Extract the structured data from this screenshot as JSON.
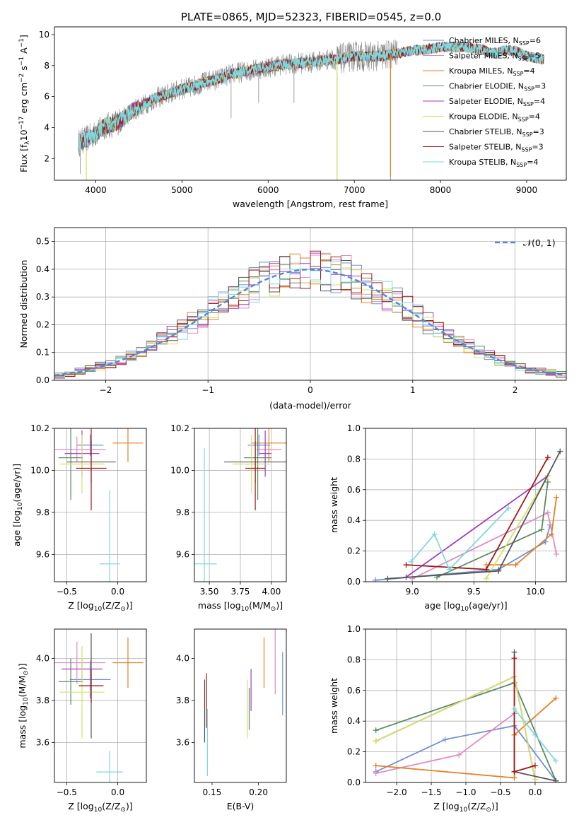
{
  "figure": {
    "title": "PLATE=0865, MJD=52323, FIBERID=0545, z=0.0"
  },
  "colors": {
    "Chabrier MILES": "#6f8fd8",
    "Salpeter MILES": "#e08cc0",
    "Kroupa MILES": "#e08224",
    "Chabrier ELODIE": "#5a8a62",
    "Salpeter ELODIE": "#a23ac0",
    "Kroupa ELODIE": "#d6e065",
    "Chabrier STELIB": "#555555",
    "Salpeter STELIB": "#a01818",
    "Kroupa STELIB": "#7fd8dc",
    "data": "#888888",
    "normal": "#5a82d8"
  },
  "chart_data": [
    {
      "id": "spectrum",
      "type": "line",
      "title": "PLATE=0865, MJD=52323, FIBERID=0545, z=0.0",
      "xlabel": "wavelength [Angstrom, rest frame]",
      "ylabel": "Flux [f",
      "ylabel_sub": "λ",
      "ylabel_rest": "10",
      "ylabel_sup1": "−17",
      "ylabel_rest2": " erg cm",
      "ylabel_sup2": "−2",
      "ylabel_rest3": " s",
      "ylabel_sup3": "−1",
      "ylabel_rest4": " A",
      "ylabel_sup4": "−1",
      "ylabel_end": "]",
      "xlim": [
        3520,
        9460
      ],
      "ylim": [
        0.6,
        10.5
      ],
      "xticks": [
        4000,
        5000,
        6000,
        7000,
        8000,
        9000
      ],
      "yticks": [
        2,
        4,
        6,
        8,
        10
      ],
      "grid": false,
      "legend_position": "right",
      "legend": [
        {
          "name": "Chabrier MILES",
          "nssp": "6"
        },
        {
          "name": "Salpeter MILES",
          "nssp": "5"
        },
        {
          "name": "Kroupa MILES",
          "nssp": "4"
        },
        {
          "name": "Chabrier ELODIE",
          "nssp": "3"
        },
        {
          "name": "Salpeter ELODIE",
          "nssp": "4"
        },
        {
          "name": "Kroupa ELODIE",
          "nssp": "4"
        },
        {
          "name": "Chabrier STELIB",
          "nssp": "3"
        },
        {
          "name": "Salpeter STELIB",
          "nssp": "3"
        },
        {
          "name": "Kroupa STELIB",
          "nssp": "4"
        }
      ],
      "legend_nssp_label": "N",
      "legend_nssp_sub": "SSP",
      "model_envelope": [
        [
          3800,
          3.0
        ],
        [
          3900,
          3.3
        ],
        [
          4000,
          3.6
        ],
        [
          4100,
          4.1
        ],
        [
          4200,
          4.2
        ],
        [
          4300,
          4.5
        ],
        [
          4400,
          5.0
        ],
        [
          4500,
          5.3
        ],
        [
          4600,
          5.6
        ],
        [
          4700,
          5.9
        ],
        [
          4800,
          6.1
        ],
        [
          4900,
          6.3
        ],
        [
          5000,
          6.5
        ],
        [
          5100,
          6.6
        ],
        [
          5200,
          6.8
        ],
        [
          5300,
          7.0
        ],
        [
          5400,
          7.1
        ],
        [
          5500,
          7.3
        ],
        [
          5600,
          7.5
        ],
        [
          5700,
          7.6
        ],
        [
          5800,
          7.7
        ],
        [
          5900,
          7.8
        ],
        [
          6000,
          7.9
        ],
        [
          6100,
          8.0
        ],
        [
          6200,
          8.1
        ],
        [
          6300,
          8.1
        ],
        [
          6400,
          8.2
        ],
        [
          6500,
          8.2
        ],
        [
          6600,
          8.3
        ],
        [
          6700,
          8.4
        ],
        [
          6800,
          8.4
        ],
        [
          6900,
          8.5
        ],
        [
          7000,
          8.6
        ],
        [
          7100,
          8.6
        ],
        [
          7200,
          8.6
        ],
        [
          7300,
          8.6
        ],
        [
          7400,
          8.7
        ],
        [
          7500,
          8.8
        ],
        [
          7600,
          8.9
        ],
        [
          7700,
          9.0
        ],
        [
          7800,
          9.0
        ],
        [
          7900,
          9.1
        ],
        [
          8000,
          9.2
        ],
        [
          8100,
          9.2
        ],
        [
          8200,
          9.2
        ],
        [
          8300,
          9.2
        ],
        [
          8400,
          9.1
        ],
        [
          8500,
          9.0
        ],
        [
          8600,
          8.8
        ],
        [
          8700,
          8.9
        ],
        [
          8800,
          9.0
        ],
        [
          8900,
          8.9
        ],
        [
          9000,
          8.6
        ],
        [
          9100,
          8.5
        ],
        [
          9200,
          8.4
        ]
      ],
      "data_range": [
        3800,
        7500
      ],
      "deep_lines": [
        {
          "x": 3820,
          "y": 1.0
        },
        {
          "x": 3890,
          "y": 1.0
        },
        {
          "x": 5570,
          "y": 4.6
        },
        {
          "x": 5890,
          "y": 5.6
        },
        {
          "x": 6300,
          "y": 5.6
        },
        {
          "x": 6800,
          "y": 0.6
        },
        {
          "x": 7420,
          "y": 0.6
        }
      ]
    },
    {
      "id": "residual-histogram",
      "type": "histogram",
      "xlabel": "(data-model)/error",
      "ylabel": "Normed distribution",
      "xlim": [
        -2.5,
        2.5
      ],
      "ylim": [
        0,
        0.55
      ],
      "xticks": [
        -2,
        -1,
        0,
        1,
        2
      ],
      "yticks": [
        0.0,
        0.1,
        0.2,
        0.3,
        0.4,
        0.5
      ],
      "grid": true,
      "bin_width": 0.1,
      "legend_position": "top-right",
      "legend": [
        {
          "name": "𝒩(0, 1)",
          "style": "dashed"
        }
      ]
    },
    {
      "id": "age-vs-metallicity",
      "type": "errorbar",
      "xlabel_pre": "Z [log",
      "xlabel_sub": "10",
      "xlabel_post": "(Z/Z",
      "xlabel_sun": "⊙",
      "xlabel_end": ")]",
      "ylabel": "age  [log10(age/yr)]",
      "xlim": [
        -0.62,
        0.28
      ],
      "ylim": [
        9.47,
        10.2
      ],
      "xticks": [
        -0.5,
        0.0
      ],
      "yticks": [
        9.6,
        9.8,
        10.0,
        10.2
      ],
      "grid": true,
      "points": [
        {
          "model": "Chabrier MILES",
          "x": -0.27,
          "y": 10.12,
          "xerr": 0.13,
          "yerr": 0.05
        },
        {
          "model": "Salpeter MILES",
          "x": -0.4,
          "y": 10.1,
          "xerr": 0.28,
          "yerr": 0.06
        },
        {
          "model": "Kroupa MILES",
          "x": 0.1,
          "y": 10.13,
          "xerr": 0.15,
          "yerr": 0.09
        },
        {
          "model": "Chabrier ELODIE",
          "x": -0.46,
          "y": 10.06,
          "xerr": 0.12,
          "yerr": 0.2
        },
        {
          "model": "Salpeter ELODIE",
          "x": -0.35,
          "y": 10.08,
          "xerr": 0.17,
          "yerr": 0.11
        },
        {
          "model": "Kroupa ELODIE",
          "x": -0.35,
          "y": 10.03,
          "xerr": 0.22,
          "yerr": 0.14
        },
        {
          "model": "Chabrier STELIB",
          "x": -0.26,
          "y": 10.04,
          "xerr": 0.24,
          "yerr": 0.1
        },
        {
          "model": "Salpeter STELIB",
          "x": -0.26,
          "y": 10.01,
          "xerr": 0.15,
          "yerr": 0.2
        },
        {
          "model": "Kroupa STELIB",
          "x": -0.08,
          "y": 9.555,
          "xerr": 0.1,
          "yerr": 0.35
        }
      ]
    },
    {
      "id": "age-vs-mass",
      "type": "errorbar",
      "xlabel_pre": "mass [log",
      "xlabel_sub": "10",
      "xlabel_post": "(M/M",
      "xlabel_sun": "⊙",
      "xlabel_end": ")]",
      "xlim": [
        3.38,
        4.12
      ],
      "ylim": [
        9.47,
        10.2
      ],
      "xticks": [
        3.5,
        3.75,
        4.0
      ],
      "xtick_labels": [
        "3.50",
        "3.75",
        "4.00"
      ],
      "yticks": [
        9.6,
        9.8,
        10.0,
        10.2
      ],
      "grid": true,
      "points": [
        {
          "model": "Chabrier MILES",
          "x": 3.9,
          "y": 10.12,
          "xerr": 0.09,
          "yerr": 0.05
        },
        {
          "model": "Salpeter MILES",
          "x": 3.98,
          "y": 10.1,
          "xerr": 0.1,
          "yerr": 0.06
        },
        {
          "model": "Kroupa MILES",
          "x": 3.98,
          "y": 10.13,
          "xerr": 0.14,
          "yerr": 0.09
        },
        {
          "model": "Chabrier ELODIE",
          "x": 3.89,
          "y": 10.06,
          "xerr": 0.11,
          "yerr": 0.2
        },
        {
          "model": "Salpeter ELODIE",
          "x": 3.95,
          "y": 10.08,
          "xerr": 0.05,
          "yerr": 0.11
        },
        {
          "model": "Kroupa ELODIE",
          "x": 3.84,
          "y": 10.03,
          "xerr": 0.15,
          "yerr": 0.14
        },
        {
          "model": "Chabrier STELIB",
          "x": 3.87,
          "y": 10.04,
          "xerr": 0.25,
          "yerr": 0.1
        },
        {
          "model": "Salpeter STELIB",
          "x": 3.87,
          "y": 10.01,
          "xerr": 0.08,
          "yerr": 0.2
        },
        {
          "model": "Kroupa STELIB",
          "x": 3.46,
          "y": 9.555,
          "xerr": 0.1,
          "yerr": 0.55
        }
      ]
    },
    {
      "id": "mass-weight-vs-age",
      "type": "line",
      "xlabel_pre": "age  [log",
      "xlabel_sub": "10",
      "xlabel_post": "(age/yr)]",
      "ylabel": "mass weight",
      "xlim": [
        8.62,
        10.25
      ],
      "ylim": [
        0,
        1
      ],
      "xticks": [
        9.0,
        9.5,
        10.0
      ],
      "yticks": [
        0.0,
        0.2,
        0.4,
        0.6,
        0.8,
        1.0
      ],
      "grid": true,
      "series": [
        {
          "model": "Chabrier MILES",
          "x": [
            8.7,
            9.7,
            10.08,
            10.12
          ],
          "y": [
            0.01,
            0.08,
            0.26,
            0.37
          ]
        },
        {
          "model": "Salpeter MILES",
          "x": [
            9.0,
            10.1,
            10.17
          ],
          "y": [
            0.02,
            0.45,
            0.18
          ]
        },
        {
          "model": "Kroupa MILES",
          "x": [
            9.6,
            9.84,
            10.13,
            10.17
          ],
          "y": [
            0.11,
            0.11,
            0.31,
            0.55
          ]
        },
        {
          "model": "Chabrier ELODIE",
          "x": [
            9.2,
            10.05,
            10.1
          ],
          "y": [
            0.03,
            0.34,
            0.65
          ]
        },
        {
          "model": "Salpeter ELODIE",
          "x": [
            8.95,
            10.1
          ],
          "y": [
            0.03,
            0.69
          ]
        },
        {
          "model": "Kroupa ELODIE",
          "x": [
            9.6,
            10.1
          ],
          "y": [
            0.02,
            0.69
          ]
        },
        {
          "model": "Chabrier STELIB",
          "x": [
            8.8,
            9.7,
            10.2
          ],
          "y": [
            0.02,
            0.07,
            0.85
          ]
        },
        {
          "model": "Salpeter STELIB",
          "x": [
            8.95,
            9.6,
            10.1
          ],
          "y": [
            0.11,
            0.08,
            0.81
          ]
        },
        {
          "model": "Kroupa STELIB",
          "x": [
            8.99,
            9.18,
            9.3,
            9.78
          ],
          "y": [
            0.13,
            0.31,
            0.08,
            0.48
          ]
        }
      ]
    },
    {
      "id": "mass-vs-metallicity",
      "type": "errorbar",
      "xlabel_pre": "Z [log",
      "xlabel_sub": "10",
      "xlabel_post": "(Z/Z",
      "xlabel_sun": "⊙",
      "xlabel_end": ")]",
      "ylabel": "mass [log10(M/M⊙)]",
      "xlim": [
        -0.62,
        0.28
      ],
      "ylim": [
        3.41,
        4.14
      ],
      "xticks": [
        -0.5,
        0.0
      ],
      "yticks": [
        3.6,
        3.8,
        4.0
      ],
      "grid": true,
      "points": [
        {
          "model": "Chabrier MILES",
          "x": -0.27,
          "y": 3.9,
          "xerr": 0.2,
          "yerr": 0.09
        },
        {
          "model": "Salpeter MILES",
          "x": -0.4,
          "y": 3.98,
          "xerr": 0.28,
          "yerr": 0.1
        },
        {
          "model": "Kroupa MILES",
          "x": 0.1,
          "y": 3.98,
          "xerr": 0.15,
          "yerr": 0.12
        },
        {
          "model": "Chabrier ELODIE",
          "x": -0.46,
          "y": 3.89,
          "xerr": 0.12,
          "yerr": 0.11
        },
        {
          "model": "Salpeter ELODIE",
          "x": -0.35,
          "y": 3.95,
          "xerr": 0.2,
          "yerr": 0.05
        },
        {
          "model": "Kroupa ELODIE",
          "x": -0.35,
          "y": 3.84,
          "xerr": 0.22,
          "yerr": 0.22
        },
        {
          "model": "Chabrier STELIB",
          "x": -0.26,
          "y": 3.87,
          "xerr": 0.12,
          "yerr": 0.25
        },
        {
          "model": "Salpeter STELIB",
          "x": -0.26,
          "y": 3.87,
          "xerr": 0.12,
          "yerr": 0.08
        },
        {
          "model": "Kroupa STELIB",
          "x": -0.08,
          "y": 3.46,
          "xerr": 0.13,
          "yerr": 0.1
        }
      ]
    },
    {
      "id": "mass-vs-extinction",
      "type": "errorbar",
      "xlabel": "E(B-V)",
      "xlim": [
        0.131,
        0.23
      ],
      "ylim": [
        3.41,
        4.14
      ],
      "xticks": [
        0.15,
        0.2
      ],
      "xtick_labels": [
        "0.15",
        "0.20"
      ],
      "yticks": [
        3.6,
        3.8,
        4.0
      ],
      "grid": false,
      "points": [
        {
          "model": "Chabrier MILES",
          "x": 0.226,
          "y": 3.88,
          "yerr": 0.15
        },
        {
          "model": "Salpeter MILES",
          "x": 0.218,
          "y": 3.99,
          "yerr": 0.16
        },
        {
          "model": "Kroupa MILES",
          "x": 0.206,
          "y": 3.98,
          "yerr": 0.12
        },
        {
          "model": "Chabrier ELODIE",
          "x": 0.19,
          "y": 3.76,
          "yerr": 0.1
        },
        {
          "model": "Salpeter ELODIE",
          "x": 0.192,
          "y": 3.85,
          "yerr": 0.1
        },
        {
          "model": "Kroupa ELODIE",
          "x": 0.188,
          "y": 3.76,
          "yerr": 0.14
        },
        {
          "model": "Chabrier STELIB",
          "x": 0.142,
          "y": 3.75,
          "yerr": 0.15
        },
        {
          "model": "Salpeter STELIB",
          "x": 0.144,
          "y": 3.8,
          "yerr": 0.13
        },
        {
          "model": "Kroupa STELIB",
          "x": 0.145,
          "y": 3.6,
          "yerr": 0.16
        }
      ]
    },
    {
      "id": "mass-weight-vs-metallicity",
      "type": "line",
      "xlabel_pre": "Z [log",
      "xlabel_sub": "10",
      "xlabel_post": "(Z/Z",
      "xlabel_sun": "⊙",
      "xlabel_end": ")]",
      "ylabel": "mass weight",
      "xlim": [
        -2.45,
        0.45
      ],
      "ylim": [
        0,
        1
      ],
      "xticks": [
        -2.0,
        -1.5,
        -1.0,
        -0.5,
        0.0
      ],
      "yticks": [
        0.0,
        0.2,
        0.4,
        0.6,
        0.8,
        1.0
      ],
      "grid": true,
      "series": [
        {
          "model": "Chabrier MILES",
          "x": [
            -2.3,
            -1.3,
            -0.3,
            0.3
          ],
          "y": [
            0.07,
            0.28,
            0.37,
            0.01
          ]
        },
        {
          "model": "Salpeter MILES",
          "x": [
            -2.3,
            -1.1,
            -0.3
          ],
          "y": [
            0.06,
            0.18,
            0.45
          ]
        },
        {
          "model": "Kroupa MILES",
          "x": [
            -2.3,
            -0.3,
            -0.3,
            0.3
          ],
          "y": [
            0.11,
            0.03,
            0.31,
            0.55
          ]
        },
        {
          "model": "Chabrier ELODIE",
          "x": [
            -2.3,
            -0.3,
            0.3
          ],
          "y": [
            0.34,
            0.65,
            0.01
          ]
        },
        {
          "model": "Salpeter ELODIE",
          "x": [
            -2.3,
            -0.3,
            0.0
          ],
          "y": [
            0.27,
            0.69,
            0.02
          ]
        },
        {
          "model": "Kroupa ELODIE",
          "x": [
            -2.3,
            -0.3,
            0.0
          ],
          "y": [
            0.27,
            0.69,
            0.02
          ]
        },
        {
          "model": "Chabrier STELIB",
          "x": [
            -0.3,
            -0.3,
            0.3
          ],
          "y": [
            0.85,
            0.07,
            0.01
          ]
        },
        {
          "model": "Salpeter STELIB",
          "x": [
            -0.3,
            -0.3,
            0.0
          ],
          "y": [
            0.81,
            0.07,
            0.11
          ]
        },
        {
          "model": "Kroupa STELIB",
          "x": [
            -0.3,
            0.0,
            0.3
          ],
          "y": [
            0.48,
            0.31,
            0.14
          ]
        }
      ]
    }
  ]
}
